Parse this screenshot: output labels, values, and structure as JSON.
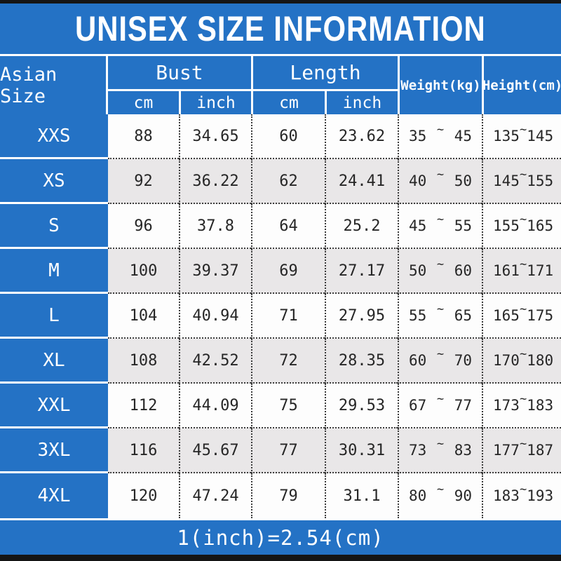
{
  "colors": {
    "blue": "#2472c5",
    "alt_row_gray": "#e9e7e8",
    "border_bar_black": "#151515",
    "data_text": "#262626",
    "header_text": "#ffffff"
  },
  "tilde": "~",
  "chart_data": {
    "type": "table",
    "title": "UNISEX SIZE INFORMATION",
    "note": "1(inch)=2.54(cm)",
    "header": {
      "size_col": "Asian Size",
      "groups": [
        {
          "label": "Bust",
          "sub": [
            "cm",
            "inch"
          ]
        },
        {
          "label": "Length",
          "sub": [
            "cm",
            "inch"
          ]
        }
      ],
      "singles": [
        "Weight(kg)",
        "Height(cm)"
      ]
    },
    "rows": [
      {
        "size": "XXS",
        "bust_cm": "88",
        "bust_inch": "34.65",
        "length_cm": "60",
        "length_inch": "23.62",
        "weight_kg": [
          "35",
          "45"
        ],
        "height_cm": [
          "135",
          "145"
        ]
      },
      {
        "size": "XS",
        "bust_cm": "92",
        "bust_inch": "36.22",
        "length_cm": "62",
        "length_inch": "24.41",
        "weight_kg": [
          "40",
          "50"
        ],
        "height_cm": [
          "145",
          "155"
        ]
      },
      {
        "size": "S",
        "bust_cm": "96",
        "bust_inch": "37.8",
        "length_cm": "64",
        "length_inch": "25.2",
        "weight_kg": [
          "45",
          "55"
        ],
        "height_cm": [
          "155",
          "165"
        ]
      },
      {
        "size": "M",
        "bust_cm": "100",
        "bust_inch": "39.37",
        "length_cm": "69",
        "length_inch": "27.17",
        "weight_kg": [
          "50",
          "60"
        ],
        "height_cm": [
          "161",
          "171"
        ]
      },
      {
        "size": "L",
        "bust_cm": "104",
        "bust_inch": "40.94",
        "length_cm": "71",
        "length_inch": "27.95",
        "weight_kg": [
          "55",
          "65"
        ],
        "height_cm": [
          "165",
          "175"
        ]
      },
      {
        "size": "XL",
        "bust_cm": "108",
        "bust_inch": "42.52",
        "length_cm": "72",
        "length_inch": "28.35",
        "weight_kg": [
          "60",
          "70"
        ],
        "height_cm": [
          "170",
          "180"
        ]
      },
      {
        "size": "XXL",
        "bust_cm": "112",
        "bust_inch": "44.09",
        "length_cm": "75",
        "length_inch": "29.53",
        "weight_kg": [
          "67",
          "77"
        ],
        "height_cm": [
          "173",
          "183"
        ]
      },
      {
        "size": "3XL",
        "bust_cm": "116",
        "bust_inch": "45.67",
        "length_cm": "77",
        "length_inch": "30.31",
        "weight_kg": [
          "73",
          "83"
        ],
        "height_cm": [
          "177",
          "187"
        ]
      },
      {
        "size": "4XL",
        "bust_cm": "120",
        "bust_inch": "47.24",
        "length_cm": "79",
        "length_inch": "31.1",
        "weight_kg": [
          "80",
          "90"
        ],
        "height_cm": [
          "183",
          "193"
        ]
      }
    ]
  }
}
